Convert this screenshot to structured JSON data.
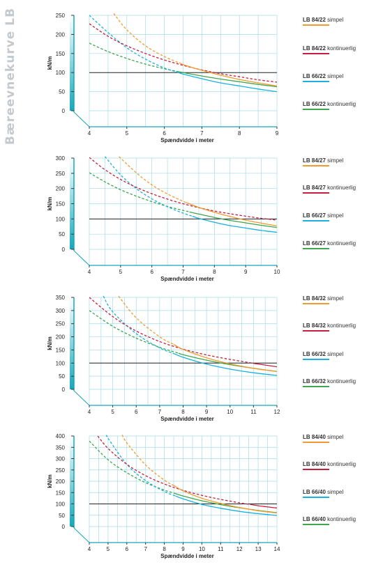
{
  "page": {
    "side_title": "Bæreevnekurve LB"
  },
  "colors": {
    "orange": "#f29a2e",
    "red": "#c81e3c",
    "blue": "#1ab0e0",
    "green": "#3fa64a",
    "grid": "#a6dbe8",
    "teal": "#16a7bc",
    "ref": "#222222"
  },
  "chart_data": [
    {
      "type": "line",
      "title": "",
      "xlabel": "Spændvidde i meter",
      "ylabel": "kN/m",
      "xlim": [
        4,
        9
      ],
      "ylim": [
        0,
        250
      ],
      "x_ticks": [
        4,
        5,
        6,
        7,
        8,
        9
      ],
      "y_ticks": [
        0,
        50,
        100,
        150,
        200,
        250
      ],
      "x_grid_step": 0.5,
      "reference_line": 100,
      "series": [
        {
          "name": "LB 84/22",
          "suffix": "simpel",
          "color": "orange",
          "points": [
            [
              4.65,
              255
            ],
            [
              5,
              212
            ],
            [
              5.5,
              170
            ],
            [
              6,
              142
            ],
            [
              6.5,
              121
            ],
            [
              7,
              106
            ],
            [
              7.5,
              93
            ],
            [
              8,
              82
            ],
            [
              8.5,
              73
            ],
            [
              9,
              65
            ]
          ],
          "dashed_until": 6.45
        },
        {
          "name": "LB 84/22",
          "suffix": "kontinuerlig",
          "color": "red",
          "points": [
            [
              4,
              228
            ],
            [
              4.5,
              195
            ],
            [
              5,
              170
            ],
            [
              5.5,
              150
            ],
            [
              6,
              133
            ],
            [
              6.5,
              119
            ],
            [
              7,
              107
            ],
            [
              7.5,
              97
            ],
            [
              8,
              89
            ],
            [
              8.5,
              81
            ],
            [
              9,
              75
            ]
          ],
          "dashed_until": 9
        },
        {
          "name": "LB 66/22",
          "suffix": "simpel",
          "color": "blue",
          "points": [
            [
              4,
              250
            ],
            [
              4.5,
              205
            ],
            [
              5,
              165
            ],
            [
              5.5,
              135
            ],
            [
              6,
              112
            ],
            [
              6.5,
              96
            ],
            [
              7,
              84
            ],
            [
              7.5,
              73
            ],
            [
              8,
              65
            ],
            [
              8.5,
              57
            ],
            [
              9,
              50
            ]
          ],
          "dashed_until": 6.3
        },
        {
          "name": "LB 66/22",
          "suffix": "kontinuerlig",
          "color": "green",
          "points": [
            [
              4,
              177
            ],
            [
              4.5,
              155
            ],
            [
              5,
              137
            ],
            [
              5.5,
              122
            ],
            [
              6,
              110
            ],
            [
              6.5,
              100
            ],
            [
              7,
              91
            ],
            [
              7.5,
              83
            ],
            [
              8,
              76
            ],
            [
              8.5,
              69
            ],
            [
              9,
              63
            ]
          ],
          "dashed_until": 6.4
        }
      ]
    },
    {
      "type": "line",
      "title": "",
      "xlabel": "Spændvidde i meter",
      "ylabel": "kN/m",
      "xlim": [
        4,
        10
      ],
      "ylim": [
        0,
        300
      ],
      "x_ticks": [
        4,
        5,
        6,
        7,
        8,
        9,
        10
      ],
      "y_ticks": [
        0,
        50,
        100,
        150,
        200,
        250,
        300
      ],
      "x_grid_step": 0.5,
      "reference_line": 100,
      "series": [
        {
          "name": "LB 84/27",
          "suffix": "simpel",
          "color": "orange",
          "points": [
            [
              4.95,
              305
            ],
            [
              5.5,
              252
            ],
            [
              6,
              212
            ],
            [
              6.5,
              182
            ],
            [
              7,
              158
            ],
            [
              7.5,
              138
            ],
            [
              8,
              122
            ],
            [
              8.5,
              108
            ],
            [
              9,
              96
            ],
            [
              9.5,
              86
            ],
            [
              10,
              77
            ]
          ],
          "dashed_until": 7.1
        },
        {
          "name": "LB 84/27",
          "suffix": "kontinuerlig",
          "color": "red",
          "points": [
            [
              4,
              302
            ],
            [
              4.5,
              262
            ],
            [
              5,
              230
            ],
            [
              5.5,
              204
            ],
            [
              6,
              183
            ],
            [
              6.5,
              165
            ],
            [
              7,
              150
            ],
            [
              7.5,
              137
            ],
            [
              8,
              126
            ],
            [
              8.5,
              117
            ],
            [
              9,
              109
            ],
            [
              9.5,
              102
            ],
            [
              10,
              96
            ]
          ],
          "dashed_until": 10
        },
        {
          "name": "LB 66/27",
          "suffix": "simpel",
          "color": "blue",
          "points": [
            [
              4.5,
              305
            ],
            [
              5,
              245
            ],
            [
              5.5,
              200
            ],
            [
              6,
              166
            ],
            [
              6.5,
              140
            ],
            [
              7,
              119
            ],
            [
              7.5,
              102
            ],
            [
              8,
              89
            ],
            [
              8.5,
              78
            ],
            [
              9,
              70
            ],
            [
              9.5,
              62
            ],
            [
              10,
              56
            ]
          ],
          "dashed_until": 7.3
        },
        {
          "name": "LB 66/27",
          "suffix": "kontinuerlig",
          "color": "green",
          "points": [
            [
              4,
              252
            ],
            [
              4.5,
              222
            ],
            [
              5,
              196
            ],
            [
              5.5,
              175
            ],
            [
              6,
              157
            ],
            [
              6.5,
              141
            ],
            [
              7,
              128
            ],
            [
              7.5,
              116
            ],
            [
              8,
              105
            ],
            [
              8.5,
              95
            ],
            [
              9,
              87
            ],
            [
              9.5,
              79
            ],
            [
              10,
              72
            ]
          ],
          "dashed_until": 7.2
        }
      ]
    },
    {
      "type": "line",
      "title": "",
      "xlabel": "Spændvidde i meter",
      "ylabel": "kN/m",
      "xlim": [
        4,
        12
      ],
      "ylim": [
        0,
        350
      ],
      "x_ticks": [
        4,
        5,
        6,
        7,
        8,
        9,
        10,
        11,
        12
      ],
      "y_ticks": [
        0,
        50,
        100,
        150,
        200,
        250,
        300,
        350
      ],
      "x_grid_step": 0.5,
      "reference_line": 100,
      "series": [
        {
          "name": "LB 84/32",
          "suffix": "simpel",
          "color": "orange",
          "points": [
            [
              5.25,
              355
            ],
            [
              6,
              272
            ],
            [
              7,
              200
            ],
            [
              8,
              152
            ],
            [
              9,
              120
            ],
            [
              10,
              97
            ],
            [
              11,
              80
            ],
            [
              12,
              68
            ]
          ],
          "dashed_until": 7.6
        },
        {
          "name": "LB 84/32",
          "suffix": "kontinuerlig",
          "color": "red",
          "points": [
            [
              4,
              350
            ],
            [
              5,
              277
            ],
            [
              6,
              222
            ],
            [
              7,
              182
            ],
            [
              8,
              153
            ],
            [
              9,
              131
            ],
            [
              10,
              114
            ],
            [
              11,
              99
            ],
            [
              12,
              86
            ]
          ],
          "dashed_until": 11
        },
        {
          "name": "LB 66/32",
          "suffix": "simpel",
          "color": "blue",
          "points": [
            [
              4.6,
              355
            ],
            [
              5,
              295
            ],
            [
              6,
              212
            ],
            [
              7,
              158
            ],
            [
              8,
              122
            ],
            [
              9,
              96
            ],
            [
              10,
              77
            ],
            [
              11,
              63
            ],
            [
              12,
              53
            ]
          ],
          "dashed_until": 7.6
        },
        {
          "name": "LB 66/32",
          "suffix": "kontinuerlig",
          "color": "green",
          "points": [
            [
              4,
              300
            ],
            [
              5,
              240
            ],
            [
              6,
              195
            ],
            [
              7,
              160
            ],
            [
              8,
              132
            ],
            [
              9,
              111
            ],
            [
              10,
              94
            ],
            [
              11,
              80
            ],
            [
              12,
              68
            ]
          ],
          "dashed_until": 7.8
        }
      ]
    },
    {
      "type": "line",
      "title": "",
      "xlabel": "Spændvidde i meter",
      "ylabel": "kN/m",
      "xlim": [
        4,
        14
      ],
      "ylim": [
        0,
        400
      ],
      "x_ticks": [
        4,
        5,
        6,
        7,
        8,
        9,
        10,
        11,
        12,
        13,
        14
      ],
      "y_ticks": [
        0,
        50,
        100,
        150,
        200,
        250,
        300,
        350,
        400
      ],
      "x_grid_step": 0.5,
      "reference_line": 100,
      "series": [
        {
          "name": "LB 84/40",
          "suffix": "simpel",
          "color": "orange",
          "points": [
            [
              5.75,
              405
            ],
            [
              6,
              370
            ],
            [
              7,
              272
            ],
            [
              8,
              205
            ],
            [
              9,
              158
            ],
            [
              10,
              125
            ],
            [
              11,
              102
            ],
            [
              12,
              84
            ],
            [
              13,
              70
            ],
            [
              14,
              60
            ]
          ],
          "dashed_until": 8.5
        },
        {
          "name": "LB 84/40",
          "suffix": "kontinuerlig",
          "color": "red",
          "points": [
            [
              4.45,
              400
            ],
            [
              5,
              345
            ],
            [
              6,
              275
            ],
            [
              7,
              225
            ],
            [
              8,
              188
            ],
            [
              9,
              160
            ],
            [
              10,
              138
            ],
            [
              11,
              120
            ],
            [
              12,
              105
            ],
            [
              13,
              92
            ],
            [
              14,
              82
            ]
          ],
          "dashed_until": 12.7
        },
        {
          "name": "LB 66/40",
          "suffix": "simpel",
          "color": "blue",
          "points": [
            [
              4.95,
              400
            ],
            [
              5,
              390
            ],
            [
              6,
              275
            ],
            [
              7,
              203
            ],
            [
              8,
              155
            ],
            [
              9,
              122
            ],
            [
              10,
              98
            ],
            [
              11,
              81
            ],
            [
              12,
              67
            ],
            [
              13,
              57
            ],
            [
              14,
              49
            ]
          ],
          "dashed_until": 8.6
        },
        {
          "name": "LB 66/40",
          "suffix": "kontinuerlig",
          "color": "green",
          "points": [
            [
              4,
              378
            ],
            [
              5,
              295
            ],
            [
              6,
              238
            ],
            [
              7,
              194
            ],
            [
              8,
              161
            ],
            [
              9,
              135
            ],
            [
              10,
              114
            ],
            [
              11,
              97
            ],
            [
              12,
              83
            ],
            [
              13,
              71
            ],
            [
              14,
              61
            ]
          ],
          "dashed_until": 8.6
        }
      ]
    }
  ]
}
